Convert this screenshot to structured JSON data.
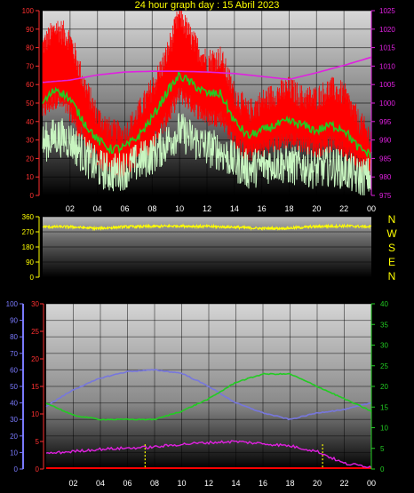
{
  "title": "24 hour graph day : 15 Abril 2023",
  "compass_labels": [
    "N",
    "W",
    "S",
    "E",
    "N"
  ],
  "colors": {
    "red": "#ff0000",
    "green": "#22cc22",
    "pale_green": "#c8f5c0",
    "magenta": "#e020e0",
    "yellow": "#ffff00",
    "blue_axis": "#7a7aff",
    "blue_line": "#7777dd",
    "axis_text_left": "#ff3030",
    "grid": "#000000"
  },
  "chart_data": [
    {
      "type": "line",
      "name": "top",
      "x_ticks": [
        "02",
        "04",
        "06",
        "08",
        "10",
        "12",
        "14",
        "16",
        "18",
        "20",
        "22",
        "00"
      ],
      "y_left_ticks": [
        0,
        10,
        20,
        30,
        40,
        50,
        60,
        70,
        80,
        90,
        100
      ],
      "y_left_range": [
        0,
        100
      ],
      "y_right_ticks": [
        975,
        980,
        985,
        990,
        995,
        1000,
        1005,
        1010,
        1015,
        1020,
        1025
      ],
      "y_right_range": [
        975,
        1025
      ],
      "series": [
        {
          "key": "red_band_upper",
          "axis": "left",
          "x": [
            0,
            1,
            2,
            3,
            4,
            5,
            6,
            7,
            8,
            9,
            10,
            11,
            12,
            13,
            14,
            15,
            16,
            17,
            18,
            19,
            20,
            21,
            22,
            23,
            24
          ],
          "values": [
            78,
            88,
            82,
            58,
            40,
            32,
            30,
            42,
            55,
            72,
            95,
            80,
            70,
            72,
            52,
            42,
            48,
            52,
            55,
            50,
            50,
            55,
            52,
            38,
            28
          ]
        },
        {
          "key": "red_band_lower",
          "axis": "left",
          "x": [
            0,
            1,
            2,
            3,
            4,
            5,
            6,
            7,
            8,
            9,
            10,
            11,
            12,
            13,
            14,
            15,
            16,
            17,
            18,
            19,
            20,
            21,
            22,
            23,
            24
          ],
          "values": [
            45,
            52,
            45,
            30,
            20,
            15,
            14,
            22,
            28,
            40,
            55,
            48,
            42,
            42,
            30,
            22,
            25,
            28,
            30,
            28,
            25,
            28,
            25,
            18,
            15
          ]
        },
        {
          "key": "green_avg",
          "axis": "left",
          "x": [
            0,
            1,
            2,
            3,
            4,
            5,
            6,
            7,
            8,
            9,
            10,
            11,
            12,
            13,
            14,
            15,
            16,
            17,
            18,
            19,
            20,
            21,
            22,
            23,
            24
          ],
          "values": [
            50,
            58,
            52,
            40,
            30,
            25,
            26,
            32,
            42,
            55,
            65,
            60,
            55,
            55,
            40,
            32,
            35,
            38,
            40,
            38,
            35,
            38,
            36,
            26,
            22
          ]
        },
        {
          "key": "pale_green",
          "axis": "left",
          "x": [
            0,
            1,
            2,
            3,
            4,
            5,
            6,
            7,
            8,
            9,
            10,
            11,
            12,
            13,
            14,
            15,
            16,
            17,
            18,
            19,
            20,
            21,
            22,
            23,
            24
          ],
          "values": [
            28,
            32,
            30,
            22,
            15,
            12,
            14,
            18,
            22,
            28,
            35,
            30,
            26,
            24,
            18,
            14,
            16,
            18,
            16,
            16,
            14,
            16,
            14,
            10,
            10
          ]
        },
        {
          "key": "magenta_pressure",
          "axis": "right",
          "x": [
            0,
            2,
            4,
            6,
            8,
            10,
            12,
            14,
            16,
            18,
            20,
            22,
            24
          ],
          "values": [
            1005.6,
            1006.2,
            1007.6,
            1008.4,
            1008.6,
            1008.6,
            1008.4,
            1008.0,
            1007.2,
            1006.4,
            1008.2,
            1010.2,
            1012.4
          ]
        }
      ]
    },
    {
      "type": "line",
      "name": "direction",
      "y_left_ticks": [
        0,
        90,
        180,
        270,
        360
      ],
      "y_range": [
        0,
        360
      ],
      "series": [
        {
          "key": "wind_direction",
          "x": [
            0,
            2,
            4,
            6,
            8,
            10,
            12,
            14,
            16,
            18,
            20,
            22,
            24
          ],
          "values": [
            300,
            300,
            290,
            300,
            302,
            305,
            302,
            298,
            290,
            292,
            302,
            305,
            300
          ]
        }
      ]
    },
    {
      "type": "line",
      "name": "bottom",
      "x_ticks": [
        "02",
        "04",
        "06",
        "08",
        "10",
        "12",
        "14",
        "16",
        "18",
        "20",
        "22",
        "00"
      ],
      "y_left_ticks": [
        0,
        10,
        20,
        30,
        40,
        50,
        60,
        70,
        80,
        90,
        100
      ],
      "y_left_range": [
        0,
        100
      ],
      "y_red_ticks": [
        0,
        5,
        10,
        15,
        20,
        25,
        30
      ],
      "y_red_range": [
        0,
        30
      ],
      "y_right_ticks": [
        0,
        5,
        10,
        15,
        20,
        25,
        30,
        35,
        40
      ],
      "y_right_range": [
        0,
        40
      ],
      "series": [
        {
          "key": "blue_humidity",
          "axis": "left",
          "x": [
            0,
            2,
            4,
            6,
            8,
            10,
            12,
            14,
            16,
            18,
            20,
            22,
            24
          ],
          "values": [
            38,
            48,
            55,
            59,
            60,
            58,
            50,
            40,
            34,
            30,
            34,
            36,
            40
          ]
        },
        {
          "key": "green_temp",
          "axis": "right",
          "x": [
            0,
            2,
            4,
            6,
            8,
            10,
            12,
            14,
            16,
            18,
            20,
            22,
            24
          ],
          "values": [
            16,
            13,
            12,
            12,
            12,
            14,
            17,
            21,
            23,
            23,
            20,
            17,
            14
          ]
        },
        {
          "key": "magenta_red_axis",
          "axis": "red",
          "x": [
            0,
            2,
            4,
            6,
            8,
            10,
            12,
            14,
            16,
            18,
            20,
            22,
            24
          ],
          "values": [
            2.8,
            3.2,
            3.6,
            3.8,
            4.0,
            4.5,
            4.8,
            5.0,
            4.6,
            4.2,
            3.2,
            1.0,
            0.4
          ]
        },
        {
          "key": "red_baseline",
          "axis": "red",
          "x": [
            0,
            24
          ],
          "values": [
            0,
            0
          ]
        }
      ],
      "yellow_markers_x": [
        7.3,
        20.4
      ]
    }
  ]
}
